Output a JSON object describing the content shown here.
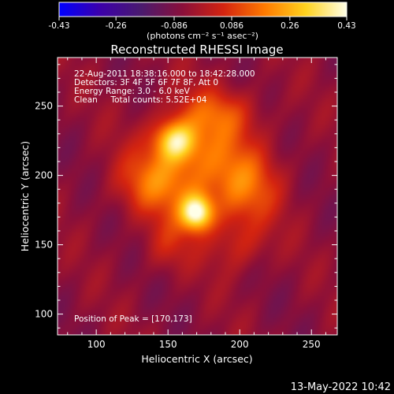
{
  "colorbar": {
    "tick_labels": [
      "-0.43",
      "-0.26",
      "-0.086",
      "0.086",
      "0.26",
      "0.43"
    ],
    "tick_values": [
      -0.43,
      -0.26,
      -0.086,
      0.086,
      0.26,
      0.43
    ],
    "unit_label": "(photons cm⁻² s⁻¹ asec⁻²)",
    "stops": [
      "#0000ff",
      "#3c00aa",
      "#4a1a6e",
      "#8a0f3a",
      "#d42410",
      "#ff7a00",
      "#ffd21e",
      "#ffffe8"
    ]
  },
  "chart_data": {
    "type": "heatmap",
    "title": "Reconstructed RHESSI Image",
    "xlabel": "Heliocentric X (arcsec)",
    "ylabel": "Heliocentric Y (arcsec)",
    "xlim": [
      73,
      268
    ],
    "ylim": [
      85,
      285
    ],
    "x_ticks": [
      100,
      150,
      200,
      250
    ],
    "y_ticks": [
      100,
      150,
      200,
      250
    ],
    "annotations": [
      "22-Aug-2011 18:38:16.000 to 18:42:28.000",
      "Detectors: 3F 4F 5F 6F 7F 8F, Att 0",
      "Energy Range: 3.0 - 6.0 keV",
      "Clean     Total counts: 5.52E+04"
    ],
    "peak_label": "Position of Peak = [170,173]",
    "peak": [
      170,
      173
    ],
    "sources": [
      {
        "x": 170,
        "y": 173,
        "amp": 0.43,
        "sx": 8,
        "sy": 9
      },
      {
        "x": 155,
        "y": 225,
        "amp": 0.33,
        "sx": 10,
        "sy": 10
      },
      {
        "x": 175,
        "y": 210,
        "amp": 0.2,
        "sx": 26,
        "sy": 28
      },
      {
        "x": 140,
        "y": 195,
        "amp": 0.17,
        "sx": 18,
        "sy": 16
      },
      {
        "x": 205,
        "y": 190,
        "amp": 0.15,
        "sx": 16,
        "sy": 18
      },
      {
        "x": 185,
        "y": 245,
        "amp": 0.12,
        "sx": 18,
        "sy": 12
      },
      {
        "x": 200,
        "y": 150,
        "amp": 0.1,
        "sx": 14,
        "sy": 14
      },
      {
        "x": 150,
        "y": 150,
        "amp": 0.09,
        "sx": 12,
        "sy": 14
      }
    ]
  },
  "footer": {
    "timestamp": "13-May-2022 10:42"
  }
}
